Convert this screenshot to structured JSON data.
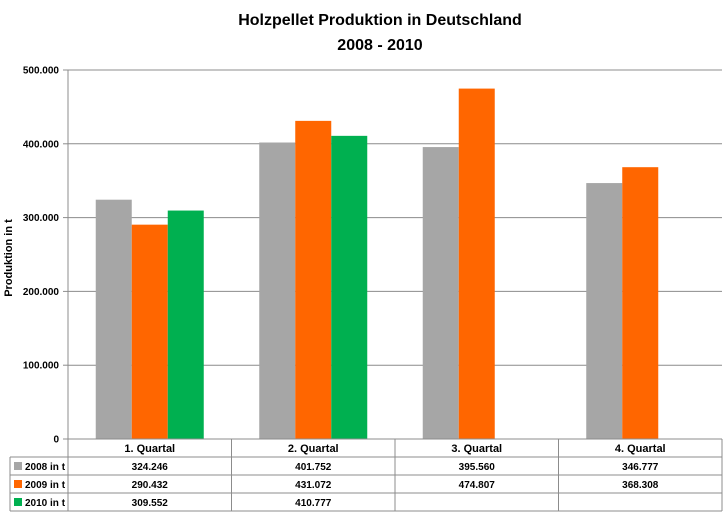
{
  "chart_data": {
    "type": "bar",
    "title": "Holzpellet Produktion in Deutschland",
    "subtitle": "2008 - 2010",
    "ylabel": "Produktion in t",
    "xlabel": "",
    "ylim": [
      0,
      500000
    ],
    "yticks": [
      0,
      100000,
      200000,
      300000,
      400000,
      500000
    ],
    "ytick_labels": [
      "0",
      "100.000",
      "200.000",
      "300.000",
      "400.000",
      "500.000"
    ],
    "grid": true,
    "legend_placement": "data-table-left",
    "categories": [
      "1. Quartal",
      "2. Quartal",
      "3. Quartal",
      "4. Quartal"
    ],
    "series": [
      {
        "name": "2008 in t",
        "color": "#a6a6a6",
        "values": [
          324246,
          401752,
          395560,
          346777
        ],
        "labels": [
          "324.246",
          "401.752",
          "395.560",
          "346.777"
        ]
      },
      {
        "name": "2009 in t",
        "color": "#ff6600",
        "values": [
          290432,
          431072,
          474807,
          368308
        ],
        "labels": [
          "290.432",
          "431.072",
          "474.807",
          "368.308"
        ]
      },
      {
        "name": "2010 in t",
        "color": "#00b050",
        "values": [
          309552,
          410777,
          null,
          null
        ],
        "labels": [
          "309.552",
          "410.777",
          "",
          ""
        ]
      }
    ]
  }
}
